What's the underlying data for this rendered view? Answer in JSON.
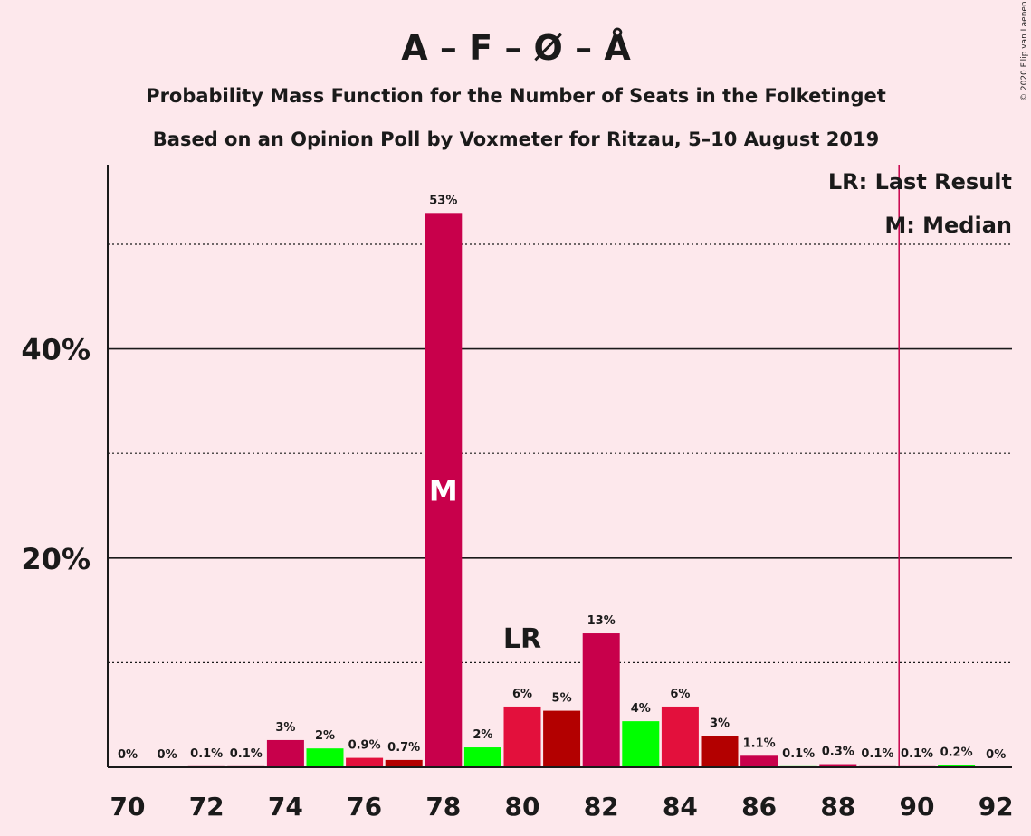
{
  "chart_data": {
    "type": "bar",
    "title": "A – F – Ø – Å",
    "subtitle_line1": "Probability Mass Function for the Number of Seats in the Folketinget",
    "subtitle_line2": "Based on an Opinion Poll by Voxmeter for Ritzau, 5–10 August 2019",
    "copyright": "© 2020 Filip van Laenen",
    "legend": {
      "lr": "LR: Last Result",
      "m": "M: Median",
      "placement": "top-right"
    },
    "xlabel": "",
    "ylabel": "",
    "ylim": [
      0,
      57
    ],
    "y_ticks": [
      {
        "value": 20,
        "label": "20%"
      },
      {
        "value": 40,
        "label": "40%"
      }
    ],
    "dotted_gridlines": [
      10,
      30,
      50
    ],
    "solid_gridlines": [
      20,
      40
    ],
    "x_ticks": [
      70,
      72,
      74,
      76,
      78,
      80,
      82,
      84,
      86,
      88,
      90,
      92
    ],
    "x_tick_labels": [
      "70",
      "72",
      "74",
      "76",
      "78",
      "80",
      "82",
      "84",
      "86",
      "88",
      "90",
      "92"
    ],
    "categories": [
      70,
      71,
      72,
      73,
      74,
      75,
      76,
      77,
      78,
      79,
      80,
      81,
      82,
      83,
      84,
      85,
      86,
      87,
      88,
      89,
      90,
      91,
      92
    ],
    "values": [
      0,
      0,
      0.1,
      0.1,
      2.6,
      1.8,
      0.9,
      0.7,
      53,
      1.9,
      5.8,
      5.4,
      12.8,
      4.4,
      5.8,
      3.0,
      1.1,
      0.1,
      0.3,
      0.1,
      0.1,
      0.2,
      0
    ],
    "labels": [
      "0%",
      "0%",
      "0.1%",
      "0.1%",
      "3%",
      "2%",
      "0.9%",
      "0.7%",
      "53%",
      "2%",
      "6%",
      "5%",
      "13%",
      "4%",
      "6%",
      "3%",
      "1.1%",
      "0.1%",
      "0.3%",
      "0.1%",
      "0.1%",
      "0.2%",
      "0%"
    ],
    "colors": [
      "#c8004b",
      "#00ff00",
      "#c8004b",
      "#c8004b",
      "#c8004b",
      "#00ff00",
      "#e3103c",
      "#b30000",
      "#c8004b",
      "#00ff00",
      "#e3103c",
      "#b30000",
      "#c8004b",
      "#00ff00",
      "#e3103c",
      "#b30000",
      "#c8004b",
      "#00ff00",
      "#c8004b",
      "#c8004b",
      "#c8004b",
      "#00ff00",
      "#c8004b"
    ],
    "median": {
      "seat": 78,
      "label": "M"
    },
    "last_result": {
      "seat": 80,
      "label": "LR"
    },
    "majority_line": {
      "seat": 89.5,
      "color": "#c8004b"
    },
    "background": "#fde8ec"
  }
}
